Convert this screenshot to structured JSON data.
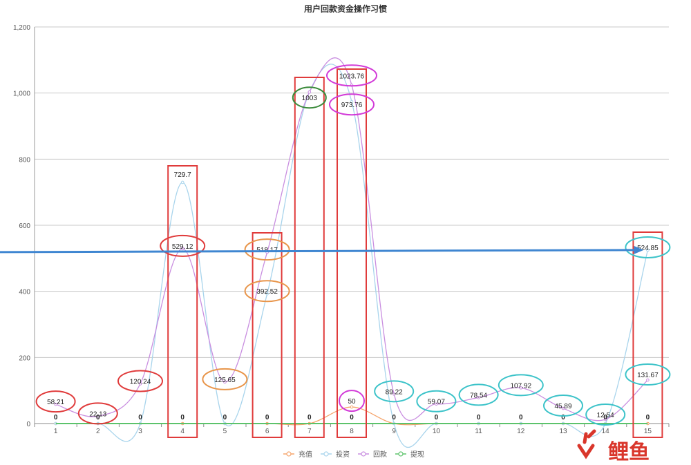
{
  "chart_data": {
    "type": "line",
    "title": "用户回款资金操作习惯",
    "categories": [
      "1",
      "2",
      "3",
      "4",
      "5",
      "6",
      "7",
      "8",
      "9",
      "10",
      "11",
      "12",
      "13",
      "14",
      "15"
    ],
    "y_ticks": [
      "0",
      "200",
      "400",
      "600",
      "800",
      "1,000",
      "1,200"
    ],
    "ylim": [
      0,
      1200
    ],
    "grid": true,
    "legend_position": "bottom",
    "series": [
      {
        "name": "充值",
        "color": "#f5a46b",
        "values": [
          0,
          0,
          0,
          0,
          0,
          0,
          0,
          50,
          0,
          0,
          0,
          0,
          0,
          0,
          0
        ]
      },
      {
        "name": "投资",
        "color": "#a8d4ec",
        "values": [
          0,
          0,
          0,
          729.7,
          0,
          392.52,
          1003,
          973.76,
          0,
          0,
          0,
          0,
          0,
          0,
          524.85
        ]
      },
      {
        "name": "回款",
        "color": "#c98ee0",
        "values": [
          58.21,
          22.13,
          120.24,
          529.12,
          125.65,
          518.17,
          1003,
          1023.76,
          89.22,
          59.07,
          78.54,
          107.92,
          45.89,
          12.54,
          131.67
        ]
      },
      {
        "name": "提现",
        "color": "#5cc36b",
        "values": [
          0,
          0,
          0,
          0,
          0,
          0,
          0,
          0,
          0,
          0,
          0,
          0,
          0,
          0,
          0
        ]
      }
    ],
    "data_labels": [
      {
        "x": "1",
        "value": 58.21,
        "text": "58.21"
      },
      {
        "x": "2",
        "value": 22.13,
        "text": "22.13"
      },
      {
        "x": "3",
        "value": 120.24,
        "text": "120.24"
      },
      {
        "x": "4",
        "value": 729.7,
        "text": "729.7"
      },
      {
        "x": "4",
        "value": 529.12,
        "text": "529.12"
      },
      {
        "x": "5",
        "value": 125.65,
        "text": "125.65"
      },
      {
        "x": "6",
        "value": 518.17,
        "text": "518.17"
      },
      {
        "x": "6",
        "value": 392.52,
        "text": "392.52"
      },
      {
        "x": "7",
        "value": 1003,
        "text": "1003"
      },
      {
        "x": "8",
        "value": 1023.76,
        "text": "1023.76"
      },
      {
        "x": "8",
        "value": 973.76,
        "text": "973.76"
      },
      {
        "x": "8",
        "value": 50,
        "text": "50"
      },
      {
        "x": "9",
        "value": 89.22,
        "text": "89.22"
      },
      {
        "x": "10",
        "value": 59.07,
        "text": "59.07"
      },
      {
        "x": "11",
        "value": 78.54,
        "text": "78.54"
      },
      {
        "x": "12",
        "value": 107.92,
        "text": "107.92"
      },
      {
        "x": "13",
        "value": 45.89,
        "text": "45.89"
      },
      {
        "x": "14",
        "value": 12.54,
        "text": "12.54"
      },
      {
        "x": "15",
        "value": 524.85,
        "text": "524.85"
      },
      {
        "x": "15",
        "value": 131.67,
        "text": "131.67"
      }
    ],
    "zero_label": "0",
    "zero_label_categories": [
      "1",
      "2",
      "3",
      "4",
      "5",
      "6",
      "7",
      "8",
      "9",
      "10",
      "11",
      "12",
      "13",
      "14",
      "15"
    ],
    "annotations": {
      "highlight_boxes": [
        "4",
        "6",
        "7",
        "8",
        "15"
      ],
      "arrow_to": "15",
      "arrow_level": 525,
      "box_color": "#e03b3b",
      "arrow_color": "#3f86d1",
      "circle_colors": {
        "red": "#e03b3b",
        "orange": "#e8954a",
        "magenta": "#d23ad8",
        "green": "#3a8a3a",
        "cyan": "#3cc3c9"
      }
    }
  },
  "watermark": {
    "text": "鲤鱼",
    "color": "#d9362b"
  }
}
